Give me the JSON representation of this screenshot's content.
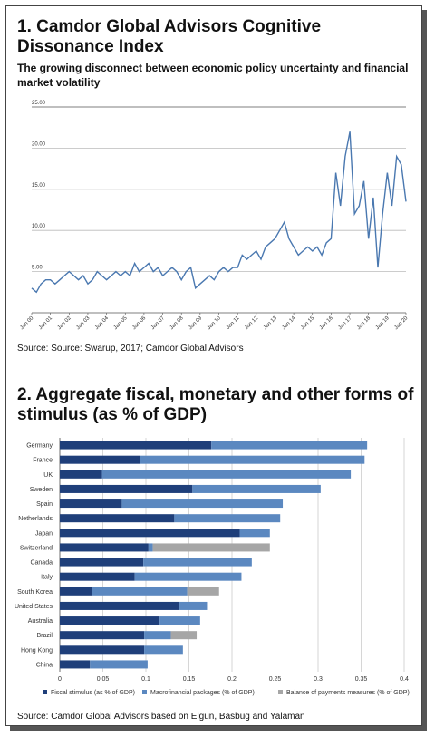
{
  "chart_data": [
    {
      "type": "line",
      "title": "1. Camdor Global Advisors Cognitive Dissonance Index",
      "subtitle": "The growing disconnect between economic policy uncertainty and financial market volatility",
      "categories": [
        "Jan 00",
        null,
        null,
        null,
        "Jan 01",
        null,
        null,
        null,
        "Jan 02",
        null,
        null,
        null,
        "Jan 03",
        null,
        null,
        null,
        "Jan 04",
        null,
        null,
        null,
        "Jan 05",
        null,
        null,
        null,
        "Jan 06",
        null,
        null,
        null,
        "Jan 07",
        null,
        null,
        null,
        "Jan 08",
        null,
        null,
        null,
        "Jan 09",
        null,
        null,
        null,
        "Jan 10",
        null,
        null,
        null,
        "Jan 11",
        null,
        null,
        null,
        "Jan 12",
        null,
        null,
        null,
        "Jan 13",
        null,
        null,
        null,
        "Jan 14",
        null,
        null,
        null,
        "Jan 15",
        null,
        null,
        null,
        "Jan 16",
        null,
        null,
        null,
        "Jan 17",
        null,
        null,
        null,
        "Jan 18",
        null,
        null,
        null,
        "Jan 19",
        null,
        null,
        null,
        "Jan 20"
      ],
      "values": [
        3,
        2.5,
        3.5,
        4,
        4,
        3.5,
        4,
        4.5,
        5,
        4.5,
        4,
        4.5,
        3.5,
        4,
        5,
        4.5,
        4,
        4.5,
        5,
        4.5,
        5,
        4.5,
        6,
        5,
        5.5,
        6,
        5,
        5.5,
        4.5,
        5,
        5.5,
        5,
        4,
        5,
        5.5,
        3,
        3.5,
        4,
        4.5,
        4,
        5,
        5.5,
        5,
        5.5,
        5.5,
        7,
        6.5,
        7,
        7.5,
        6.5,
        8,
        8.5,
        9,
        10,
        11,
        9,
        8,
        7,
        7.5,
        8,
        7.5,
        8,
        7,
        8.5,
        9,
        17,
        13,
        19,
        22,
        12,
        13,
        16,
        9,
        14,
        5.5,
        12,
        17,
        13,
        19,
        18,
        13.5
      ],
      "color": "#4a78b0",
      "ylim": [
        0,
        25
      ],
      "yticks": [
        {
          "value": 5,
          "label": "5.00"
        },
        {
          "value": 10,
          "label": "10.00"
        },
        {
          "value": 15,
          "label": "15.00"
        },
        {
          "value": 20,
          "label": "20.00"
        },
        {
          "value": 25,
          "label": "25.00"
        }
      ],
      "grid": true,
      "source": "Source: Source: Swarup, 2017; Camdor Global Advisors"
    },
    {
      "type": "stacked-hbar",
      "title": "2. Aggregate fiscal, monetary and other forms of stimulus (as % of GDP)",
      "categories": [
        "Germany",
        "France",
        "UK",
        "Sweden",
        "Spain",
        "Netherlands",
        "Japan",
        "Switzerland",
        "Canada",
        "Italy",
        "South Korea",
        "United States",
        "Australia",
        "Brazil",
        "Hong Kong",
        "China"
      ],
      "series": [
        {
          "name": "Fiscal stimulus (as % of GDP)",
          "color": "#1f3f7a",
          "values": [
            0.176,
            0.093,
            0.049,
            0.154,
            0.072,
            0.133,
            0.209,
            0.103,
            0.097,
            0.087,
            0.037,
            0.139,
            0.116,
            0.098,
            0.098,
            0.035
          ]
        },
        {
          "name": "Macrofinancial packages (% of GDP)",
          "color": "#5b88c0",
          "values": [
            0.181,
            0.261,
            0.289,
            0.149,
            0.187,
            0.123,
            0.035,
            0.005,
            0.126,
            0.124,
            0.111,
            0.032,
            0.047,
            0.031,
            0.045,
            0.067
          ]
        },
        {
          "name": "Balance of payments measures (% of GDP)",
          "color": "#a6a6a6",
          "values": [
            0,
            0,
            0,
            0,
            0,
            0,
            0,
            0.136,
            0,
            0,
            0.037,
            0,
            0,
            0.03,
            0,
            0
          ]
        }
      ],
      "xlim": [
        0,
        0.4
      ],
      "xticks": [
        0,
        0.05,
        0.1,
        0.15,
        0.2,
        0.25,
        0.3,
        0.35,
        0.4
      ],
      "grid": true,
      "source": "Source: Camdor Global Advisors based on Elgun, Basbug and Yalaman"
    }
  ]
}
